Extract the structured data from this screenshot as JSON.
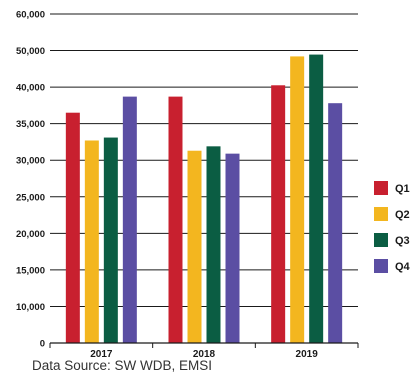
{
  "chart_data": {
    "type": "bar",
    "categories": [
      "2017",
      "2018",
      "2019"
    ],
    "series": [
      {
        "name": "Q1",
        "color": "#c8202f",
        "values": [
          36500,
          38700,
          40500
        ]
      },
      {
        "name": "Q2",
        "color": "#f3b61f",
        "values": [
          32700,
          31300,
          48400
        ]
      },
      {
        "name": "Q3",
        "color": "#0b5d43",
        "values": [
          33100,
          31900,
          48900
        ]
      },
      {
        "name": "Q4",
        "color": "#5b4ea3",
        "values": [
          38700,
          30900,
          37800
        ]
      }
    ],
    "y_ticks": [
      "0",
      "10,000",
      "15,000",
      "20,000",
      "25,000",
      "30,000",
      "35,000",
      "40,000",
      "50,000",
      "60,000"
    ],
    "y_axis_note": "irregular tick labels on evenly spaced gridlines",
    "grid": true,
    "legend_position": "right"
  },
  "source_text": "Data Source: SW WDB, EMSI"
}
